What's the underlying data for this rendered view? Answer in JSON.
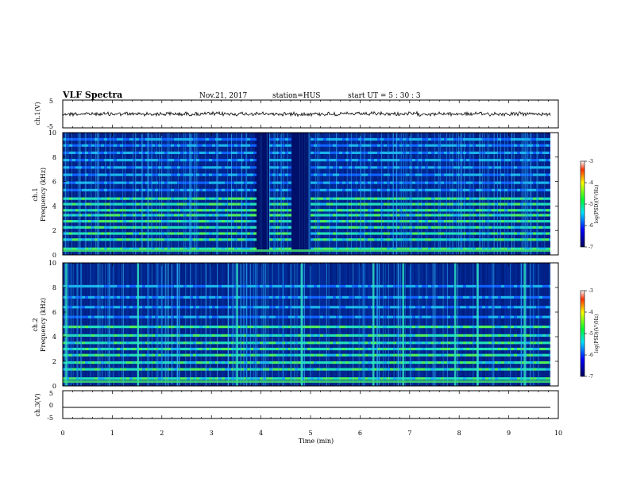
{
  "header": {
    "title": "VLF Spectra",
    "date": "Nov.21, 2017",
    "station": "station=HUS",
    "start": "start UT =  5 : 30 : 3"
  },
  "chart_data": [
    {
      "id": "ch1-waveform",
      "type": "line",
      "ylabel": "ch.1(V)",
      "ylim": [
        -5,
        5
      ],
      "yticks": [
        "5",
        "-5"
      ],
      "xlim": [
        0,
        10
      ],
      "series": [
        {
          "values_summary": "noise band centred near 0 V, amplitude about ±0.3 V"
        }
      ]
    },
    {
      "id": "ch1-spectrogram",
      "type": "heatmap",
      "ylabel": "ch.1",
      "ylabel2": "Frequency (kHz)",
      "ylim": [
        0,
        10
      ],
      "yticks": [
        "0",
        "2",
        "4",
        "6",
        "8",
        "10"
      ],
      "xlim": [
        0,
        10
      ],
      "bands_khz": [
        0.5,
        1.25,
        1.75,
        2.25,
        2.75,
        3.25,
        3.65,
        4.15,
        4.6,
        5.3,
        5.9,
        6.55,
        7.15,
        7.75,
        8.35,
        8.95,
        9.45
      ],
      "quiet_intervals_min": [
        [
          3.85,
          4.15
        ],
        [
          4.6,
          4.95
        ]
      ],
      "colorbar": {
        "label": "log(PSD)(V²/Hz)",
        "ticks": [
          "-3",
          "-4",
          "-5",
          "-6",
          "-7"
        ],
        "range": [
          -7,
          -3
        ]
      }
    },
    {
      "id": "ch2-spectrogram",
      "type": "heatmap",
      "ylabel": "ch.2",
      "ylabel2": "Frequency (kHz)",
      "ylim": [
        0,
        10
      ],
      "yticks": [
        "0",
        "2",
        "4",
        "6",
        "8",
        "10"
      ],
      "xlim": [
        0,
        10
      ],
      "bands_khz": [
        0.6,
        1.35,
        1.9,
        2.5,
        3.0,
        3.5,
        4.1,
        4.8,
        5.6,
        6.4,
        7.2,
        8.1
      ],
      "strong_bursts_min": [
        0.05,
        1.5,
        3.5,
        4.8,
        6.25,
        6.85,
        7.9,
        8.35,
        9.3
      ],
      "colorbar": {
        "label": "log(PSD)(V²/Hz)",
        "ticks": [
          "-3",
          "-4",
          "-5",
          "-6",
          "-7"
        ],
        "range": [
          -7,
          -3
        ]
      }
    },
    {
      "id": "ch3-waveform",
      "type": "line",
      "ylabel": "ch.3(V)",
      "ylim": [
        -5,
        5
      ],
      "yticks": [
        "5",
        "0",
        "-5"
      ],
      "xlim": [
        0,
        10
      ],
      "series": [
        {
          "values_summary": "flat line near 0 V"
        }
      ]
    }
  ],
  "xaxis": {
    "label": "Time (min)",
    "ticks": [
      "0",
      "1",
      "2",
      "3",
      "4",
      "5",
      "6",
      "7",
      "8",
      "9",
      "10"
    ]
  },
  "colors": {
    "background": "#ffffff",
    "axis": "#000000",
    "spectrogram_low": "#00004a",
    "spectrogram_mid": "#0050ff",
    "spectrogram_band": "#21d9b0",
    "spectrogram_high": "#36f04a"
  }
}
